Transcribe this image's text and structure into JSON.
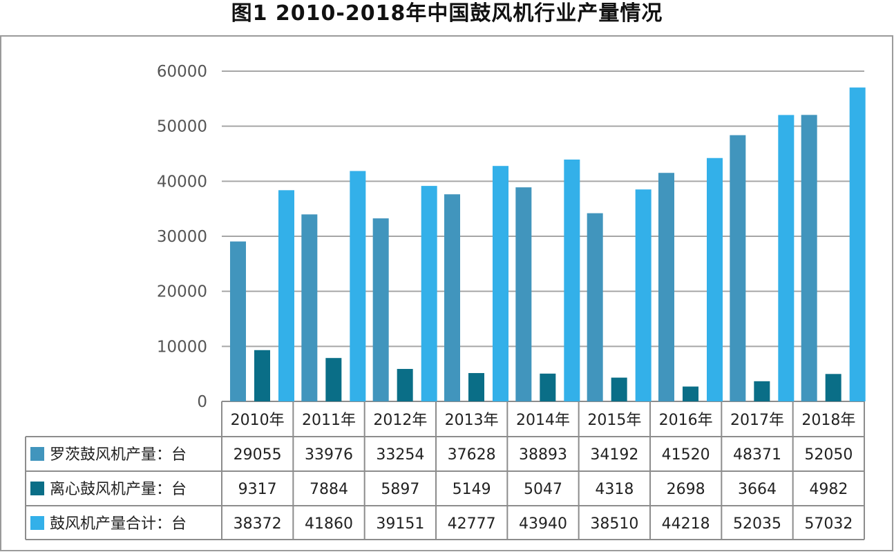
{
  "chart_data": {
    "type": "bar",
    "title": "图1 2010-2018年中国鼓风机行业产量情况",
    "categories": [
      "2010年",
      "2011年",
      "2012年",
      "2013年",
      "2014年",
      "2015年",
      "2016年",
      "2017年",
      "2018年"
    ],
    "series": [
      {
        "name": "罗茨鼓风机产量：台",
        "color": "#4195bd",
        "values": [
          29055,
          33976,
          33254,
          37628,
          38893,
          34192,
          41520,
          48371,
          52050
        ]
      },
      {
        "name": "离心鼓风机产量：台",
        "color": "#0a6e87",
        "values": [
          9317,
          7884,
          5897,
          5149,
          5047,
          4318,
          2698,
          3664,
          4982
        ]
      },
      {
        "name": "鼓风机产量合计：台",
        "color": "#33b0e9",
        "values": [
          38372,
          41860,
          39151,
          42777,
          43940,
          38510,
          44218,
          52035,
          57032
        ]
      }
    ],
    "ylim": [
      0,
      60000
    ],
    "yticks": [
      0,
      10000,
      20000,
      30000,
      40000,
      50000,
      60000
    ],
    "grid": true,
    "legend_placement": "data-table-rows",
    "data_table": true
  }
}
